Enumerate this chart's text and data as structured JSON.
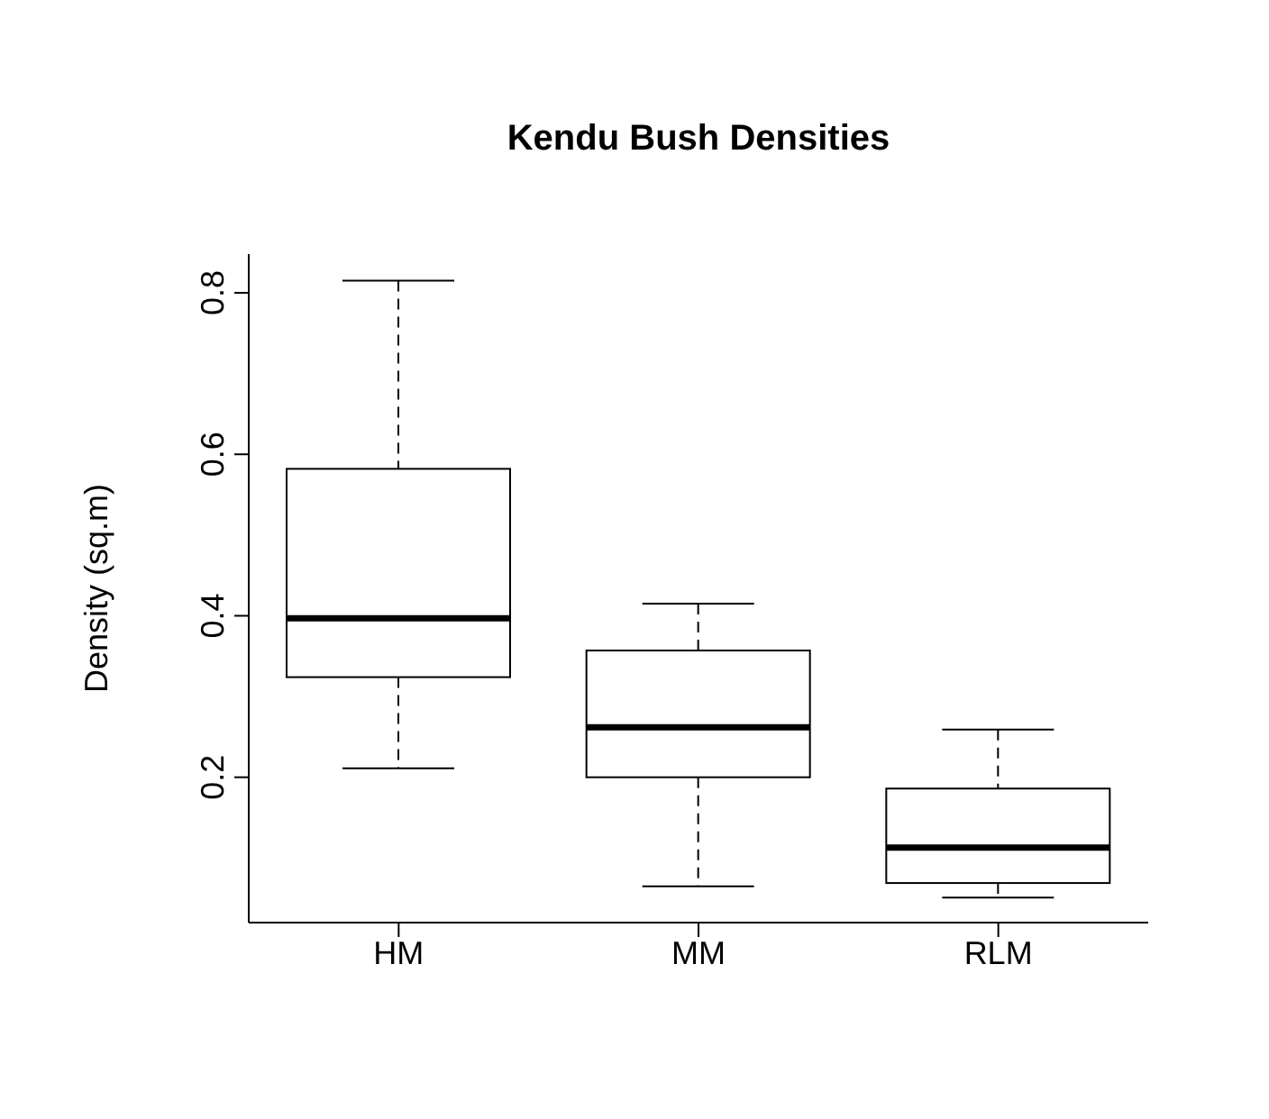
{
  "chart_data": {
    "type": "box",
    "title": "Kendu Bush Densities",
    "ylabel": "Density (sq.m)",
    "categories": [
      "HM",
      "MM",
      "RLM"
    ],
    "boxes": [
      {
        "low": 0.211,
        "q1": 0.324,
        "median": 0.397,
        "q3": 0.582,
        "high": 0.815
      },
      {
        "low": 0.065,
        "q1": 0.2,
        "median": 0.262,
        "q3": 0.357,
        "high": 0.415
      },
      {
        "low": 0.051,
        "q1": 0.069,
        "median": 0.113,
        "q3": 0.186,
        "high": 0.259
      }
    ],
    "ylim": [
      0.02,
      0.848
    ],
    "yticks": [
      0.2,
      0.4,
      0.6,
      0.8
    ]
  }
}
